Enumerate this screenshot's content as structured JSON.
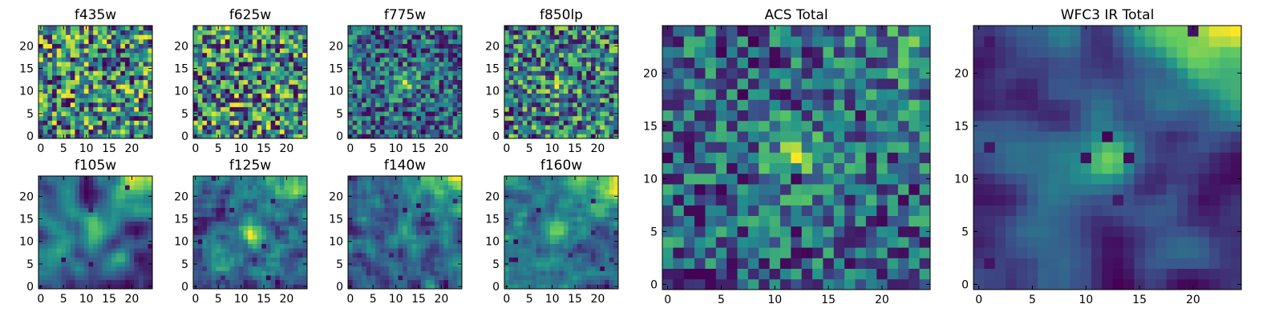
{
  "chart_data": {
    "type": "heatmap",
    "colormap": "viridis",
    "cmap_colors": [
      "#440154",
      "#3b528b",
      "#21908d",
      "#5dc963",
      "#fde725"
    ],
    "grid_size": 25,
    "panels": [
      {
        "title": "f435w",
        "x_ticks": [
          "0",
          "5",
          "10",
          "15",
          "20"
        ],
        "y_ticks": [
          "0",
          "5",
          "10",
          "15",
          "20"
        ],
        "xlim": [
          0,
          24
        ],
        "ylim": [
          0,
          24
        ]
      },
      {
        "title": "f625w",
        "x_ticks": [
          "0",
          "5",
          "10",
          "15",
          "20"
        ],
        "y_ticks": [
          "0",
          "5",
          "10",
          "15",
          "20"
        ],
        "xlim": [
          0,
          24
        ],
        "ylim": [
          0,
          24
        ]
      },
      {
        "title": "f775w",
        "x_ticks": [
          "0",
          "5",
          "10",
          "15",
          "20"
        ],
        "y_ticks": [
          "0",
          "5",
          "10",
          "15",
          "20"
        ],
        "xlim": [
          0,
          24
        ],
        "ylim": [
          0,
          24
        ]
      },
      {
        "title": "f850lp",
        "x_ticks": [
          "0",
          "5",
          "10",
          "15",
          "20"
        ],
        "y_ticks": [
          "0",
          "5",
          "10",
          "15",
          "20"
        ],
        "xlim": [
          0,
          24
        ],
        "ylim": [
          0,
          24
        ]
      },
      {
        "title": "f105w",
        "x_ticks": [
          "0",
          "5",
          "10",
          "15",
          "20"
        ],
        "y_ticks": [
          "0",
          "5",
          "10",
          "15",
          "20"
        ],
        "xlim": [
          0,
          24
        ],
        "ylim": [
          0,
          24
        ]
      },
      {
        "title": "f125w",
        "x_ticks": [
          "0",
          "5",
          "10",
          "15",
          "20"
        ],
        "y_ticks": [
          "0",
          "5",
          "10",
          "15",
          "20"
        ],
        "xlim": [
          0,
          24
        ],
        "ylim": [
          0,
          24
        ]
      },
      {
        "title": "f140w",
        "x_ticks": [
          "0",
          "5",
          "10",
          "15",
          "20"
        ],
        "y_ticks": [
          "0",
          "5",
          "10",
          "15",
          "20"
        ],
        "xlim": [
          0,
          24
        ],
        "ylim": [
          0,
          24
        ]
      },
      {
        "title": "f160w",
        "x_ticks": [
          "0",
          "5",
          "10",
          "15",
          "20"
        ],
        "y_ticks": [
          "0",
          "5",
          "10",
          "15",
          "20"
        ],
        "xlim": [
          0,
          24
        ],
        "ylim": [
          0,
          24
        ]
      },
      {
        "title": "ACS Total",
        "x_ticks": [
          "0",
          "5",
          "10",
          "15",
          "20"
        ],
        "y_ticks": [
          "0",
          "5",
          "10",
          "15",
          "20"
        ],
        "xlim": [
          0,
          24
        ],
        "ylim": [
          0,
          24
        ]
      },
      {
        "title": "WFC3 IR Total",
        "x_ticks": [
          "0",
          "5",
          "10",
          "15",
          "20"
        ],
        "y_ticks": [
          "0",
          "5",
          "10",
          "15",
          "20"
        ],
        "xlim": [
          0,
          24
        ],
        "ylim": [
          0,
          24
        ]
      }
    ]
  }
}
